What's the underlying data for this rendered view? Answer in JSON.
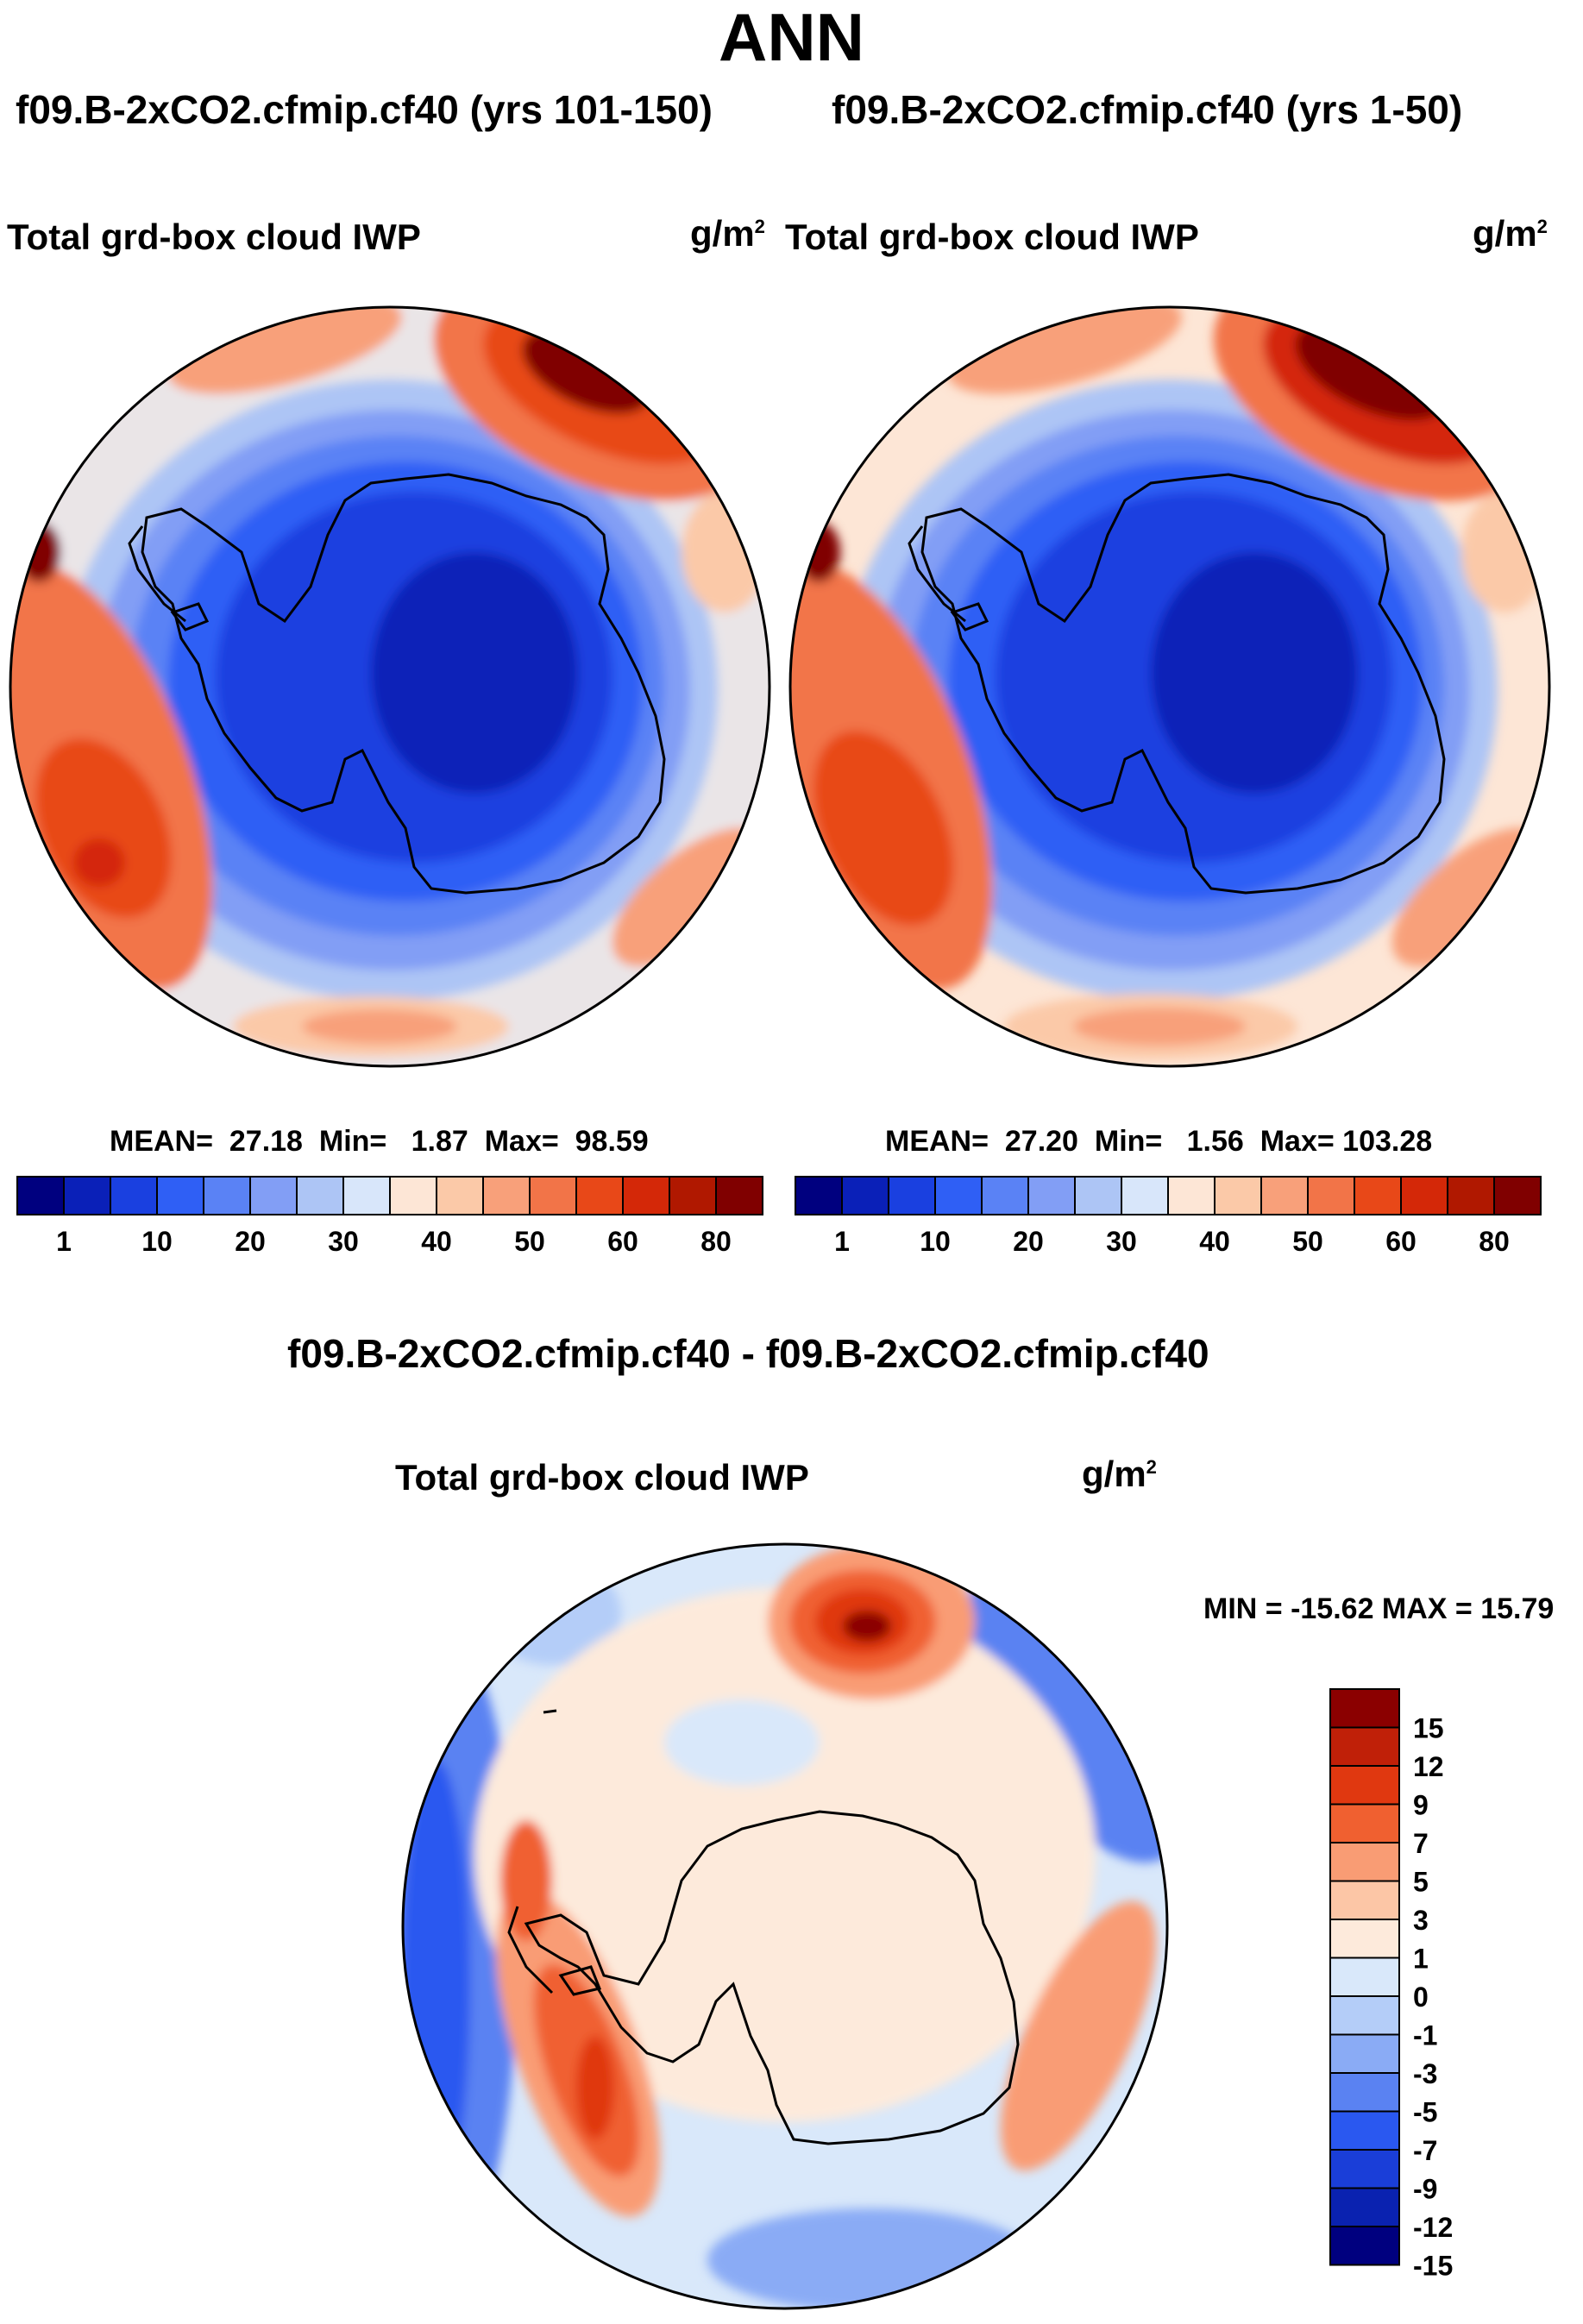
{
  "figure": {
    "title": "ANN",
    "variable_label": "Total grd-box cloud IWP",
    "units_base": "g/m",
    "units_exp": "2"
  },
  "panels": [
    {
      "id": "left",
      "title": "f09.B-2xCO2.cfmip.cf40 (yrs 101-150)",
      "stats": {
        "mean_label": "MEAN=",
        "mean": "27.18",
        "min_label": "Min=",
        "min": "1.87",
        "max_label": "Max=",
        "max": "98.59"
      }
    },
    {
      "id": "right",
      "title": "f09.B-2xCO2.cfmip.cf40 (yrs 1-50)",
      "stats": {
        "mean_label": "MEAN=",
        "mean": "27.20",
        "min_label": "Min=",
        "min": "1.56",
        "max_label": "Max=",
        "max": "103.28"
      }
    }
  ],
  "abs_colorbar": {
    "colors": [
      "#00007f",
      "#0a20b8",
      "#1a40e0",
      "#2f5ff5",
      "#5a82f5",
      "#829ef5",
      "#adc5f5",
      "#d8e6fa",
      "#fde6d6",
      "#fbc9a8",
      "#f8a07a",
      "#f27448",
      "#e84818",
      "#d42808",
      "#b01800",
      "#800000"
    ],
    "tick_labels": [
      "1",
      "10",
      "20",
      "30",
      "40",
      "50",
      "60",
      "80"
    ]
  },
  "diff_panel": {
    "title": "f09.B-2xCO2.cfmip.cf40 - f09.B-2xCO2.cfmip.cf40",
    "minmax_text": "MIN = -15.62 MAX =  15.79"
  },
  "diff_colorbar": {
    "colors_top_to_bottom": [
      "#8b0000",
      "#c02008",
      "#e03810",
      "#f06030",
      "#f99c74",
      "#fcc6a6",
      "#fdeadb",
      "#d9e8fa",
      "#b4cdf8",
      "#8aabf5",
      "#5a82f2",
      "#2a58f0",
      "#1a3ed8",
      "#0a22b0",
      "#00007f"
    ],
    "labels_top_to_bottom": [
      "15",
      "12",
      "9",
      "7",
      "5",
      "3",
      "1",
      "0",
      "-1",
      "-3",
      "-5",
      "-7",
      "-9",
      "-12",
      "-15"
    ]
  },
  "colors": {
    "deep_blue": "#1a40e0",
    "mid_blue": "#3a62f5",
    "light_blue": "#adc5f5",
    "pale": "#fde6d6",
    "orange": "#f27448",
    "red": "#d42808",
    "dark_red": "#800000",
    "coast": "#000000"
  }
}
